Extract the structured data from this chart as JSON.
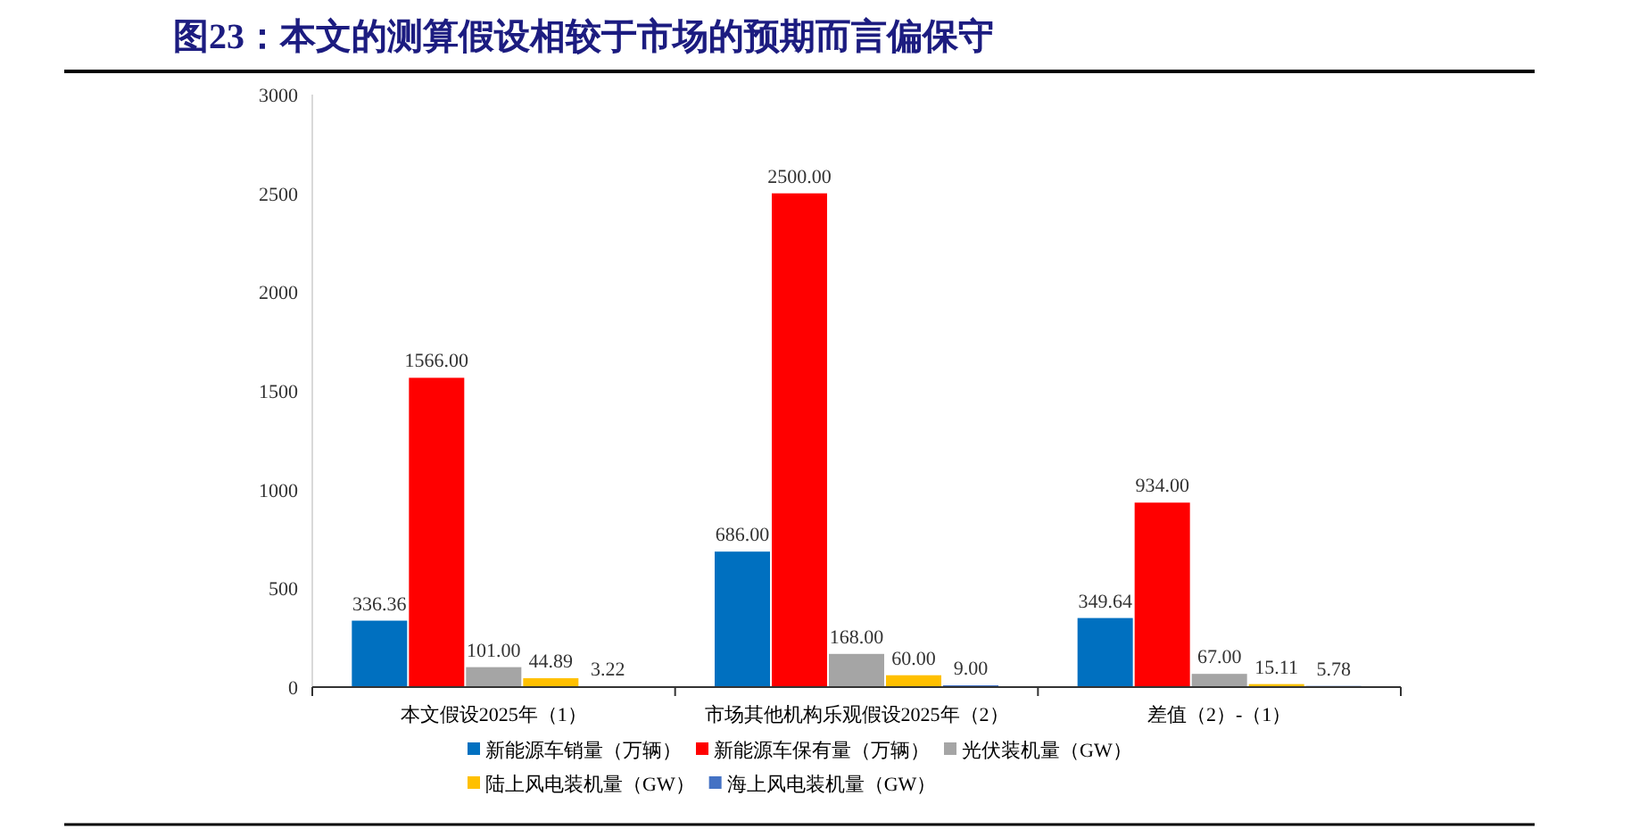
{
  "chart_data": {
    "type": "bar",
    "title": "图23：本文的测算假设相较于市场的预期而言偏保守",
    "categories": [
      "本文假设2025年（1）",
      "市场其他机构乐观假设2025年（2）",
      "差值（2）-（1）"
    ],
    "series": [
      {
        "name": "新能源车销量（万辆）",
        "color": "#0070c0",
        "values": [
          336.36,
          686.0,
          349.64
        ],
        "value_labels": [
          "336.36",
          "686.00",
          "349.64"
        ]
      },
      {
        "name": "新能源车保有量（万辆）",
        "color": "#ff0000",
        "values": [
          1566.0,
          2500.0,
          934.0
        ],
        "value_labels": [
          "1566.00",
          "2500.00",
          "934.00"
        ]
      },
      {
        "name": "光伏装机量（GW）",
        "color": "#a5a5a5",
        "values": [
          101.0,
          168.0,
          67.0
        ],
        "value_labels": [
          "101.00",
          "168.00",
          "67.00"
        ]
      },
      {
        "name": "陆上风电装机量（GW）",
        "color": "#ffc000",
        "values": [
          44.89,
          60.0,
          15.11
        ],
        "value_labels": [
          "44.89",
          "60.00",
          "15.11"
        ]
      },
      {
        "name": "海上风电装机量（GW）",
        "color": "#4472c4",
        "values": [
          3.22,
          9.0,
          5.78
        ],
        "value_labels": [
          "3.22",
          "9.00",
          "5.78"
        ]
      }
    ],
    "ylim": [
      0,
      3000
    ],
    "yticks": [
      0,
      500,
      1000,
      1500,
      2000,
      2500,
      3000
    ],
    "grid": false,
    "legend": "bottom"
  }
}
